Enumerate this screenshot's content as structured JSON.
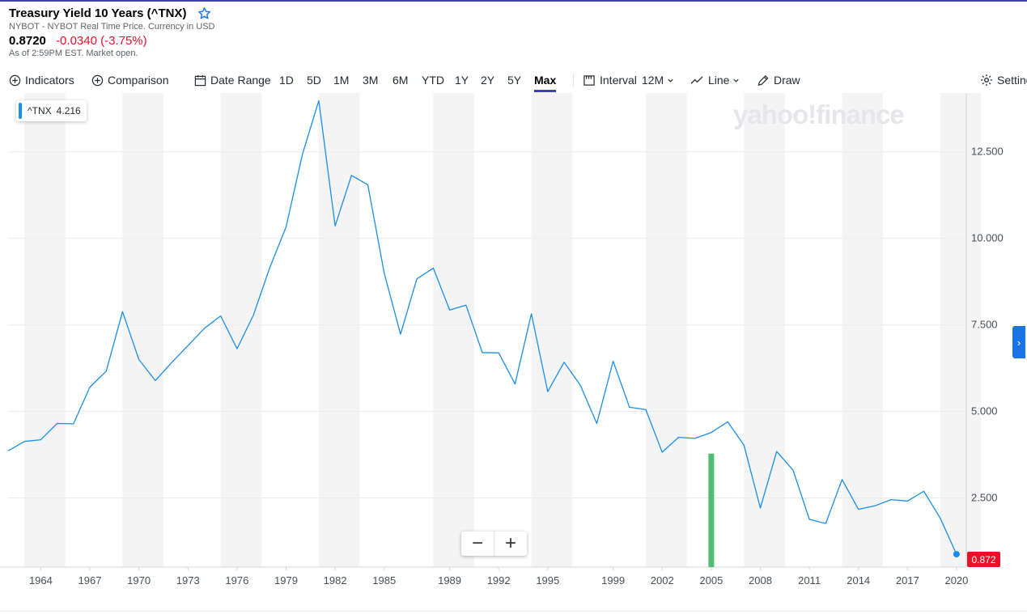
{
  "header": {
    "title": "Treasury Yield 10 Years (^TNX)",
    "exchange": "NYBOT - NYBOT Real Time Price. Currency in USD",
    "price": "0.8720",
    "change": "-0.0340 (-3.75%)",
    "as_of": "As of 2:59PM EST. Market open."
  },
  "toolbar": {
    "indicators": "Indicators",
    "comparison": "Comparison",
    "date_range": "Date Range",
    "ranges": [
      "1D",
      "5D",
      "1M",
      "3M",
      "6M",
      "YTD",
      "1Y",
      "2Y",
      "5Y",
      "Max"
    ],
    "active_range": "Max",
    "interval_label": "Interval",
    "interval_value": "12M",
    "chart_type": "Line",
    "draw": "Draw",
    "settings": "Settings"
  },
  "legend_tag": {
    "symbol": "^TNX",
    "value": "4.216"
  },
  "watermark": "yahoo!finance",
  "last_price_label": "0.872",
  "zoom": {
    "out": "−",
    "in": "+"
  },
  "colors": {
    "line": "#1a8de6",
    "negative": "#eb0f29",
    "accent": "#3d3fb9",
    "band": "#f4f4f4",
    "volume": "#4dbd74"
  },
  "chart_data": {
    "type": "line",
    "series": [
      {
        "name": "^TNX",
        "x": [
          1962,
          1963,
          1964,
          1965,
          1966,
          1967,
          1968,
          1969,
          1970,
          1971,
          1972,
          1973,
          1974,
          1975,
          1976,
          1977,
          1978,
          1979,
          1980,
          1981,
          1982,
          1983,
          1984,
          1985,
          1986,
          1987,
          1988,
          1989,
          1990,
          1991,
          1992,
          1993,
          1994,
          1995,
          1996,
          1997,
          1998,
          1999,
          2000,
          2001,
          2002,
          2003,
          2004,
          2005,
          2006,
          2007,
          2008,
          2009,
          2010,
          2011,
          2012,
          2013,
          2014,
          2015,
          2016,
          2017,
          2018,
          2019,
          2020
        ],
        "values": [
          3.86,
          4.13,
          4.18,
          4.65,
          4.64,
          5.7,
          6.16,
          7.88,
          6.5,
          5.89,
          6.41,
          6.9,
          7.4,
          7.76,
          6.81,
          7.78,
          9.15,
          10.33,
          12.43,
          13.98,
          10.36,
          11.82,
          11.55,
          9.0,
          7.23,
          8.83,
          9.14,
          7.93,
          8.07,
          6.7,
          6.69,
          5.79,
          7.82,
          5.57,
          6.42,
          5.75,
          4.65,
          6.45,
          5.12,
          5.05,
          3.82,
          4.25,
          4.22,
          4.39,
          4.7,
          4.02,
          2.21,
          3.84,
          3.3,
          1.88,
          1.76,
          3.03,
          2.17,
          2.27,
          2.45,
          2.41,
          2.69,
          1.92,
          0.872
        ]
      }
    ],
    "x_tick_labels": [
      "1964",
      "1967",
      "1970",
      "1973",
      "1976",
      "1979",
      "1982",
      "1985",
      "1989",
      "1992",
      "1995",
      "1999",
      "2002",
      "2005",
      "2008",
      "2011",
      "2014",
      "2017",
      "2020"
    ],
    "y_ticks": [
      "2.500",
      "5.000",
      "7.500",
      "10.000",
      "12.500"
    ],
    "ylim": [
      0.5,
      14.2
    ],
    "xlim": [
      1962,
      2020.3
    ],
    "volume_marker": {
      "x": 2005,
      "value": 3.78
    },
    "last_point": {
      "x": 2020,
      "value": 0.872
    }
  }
}
